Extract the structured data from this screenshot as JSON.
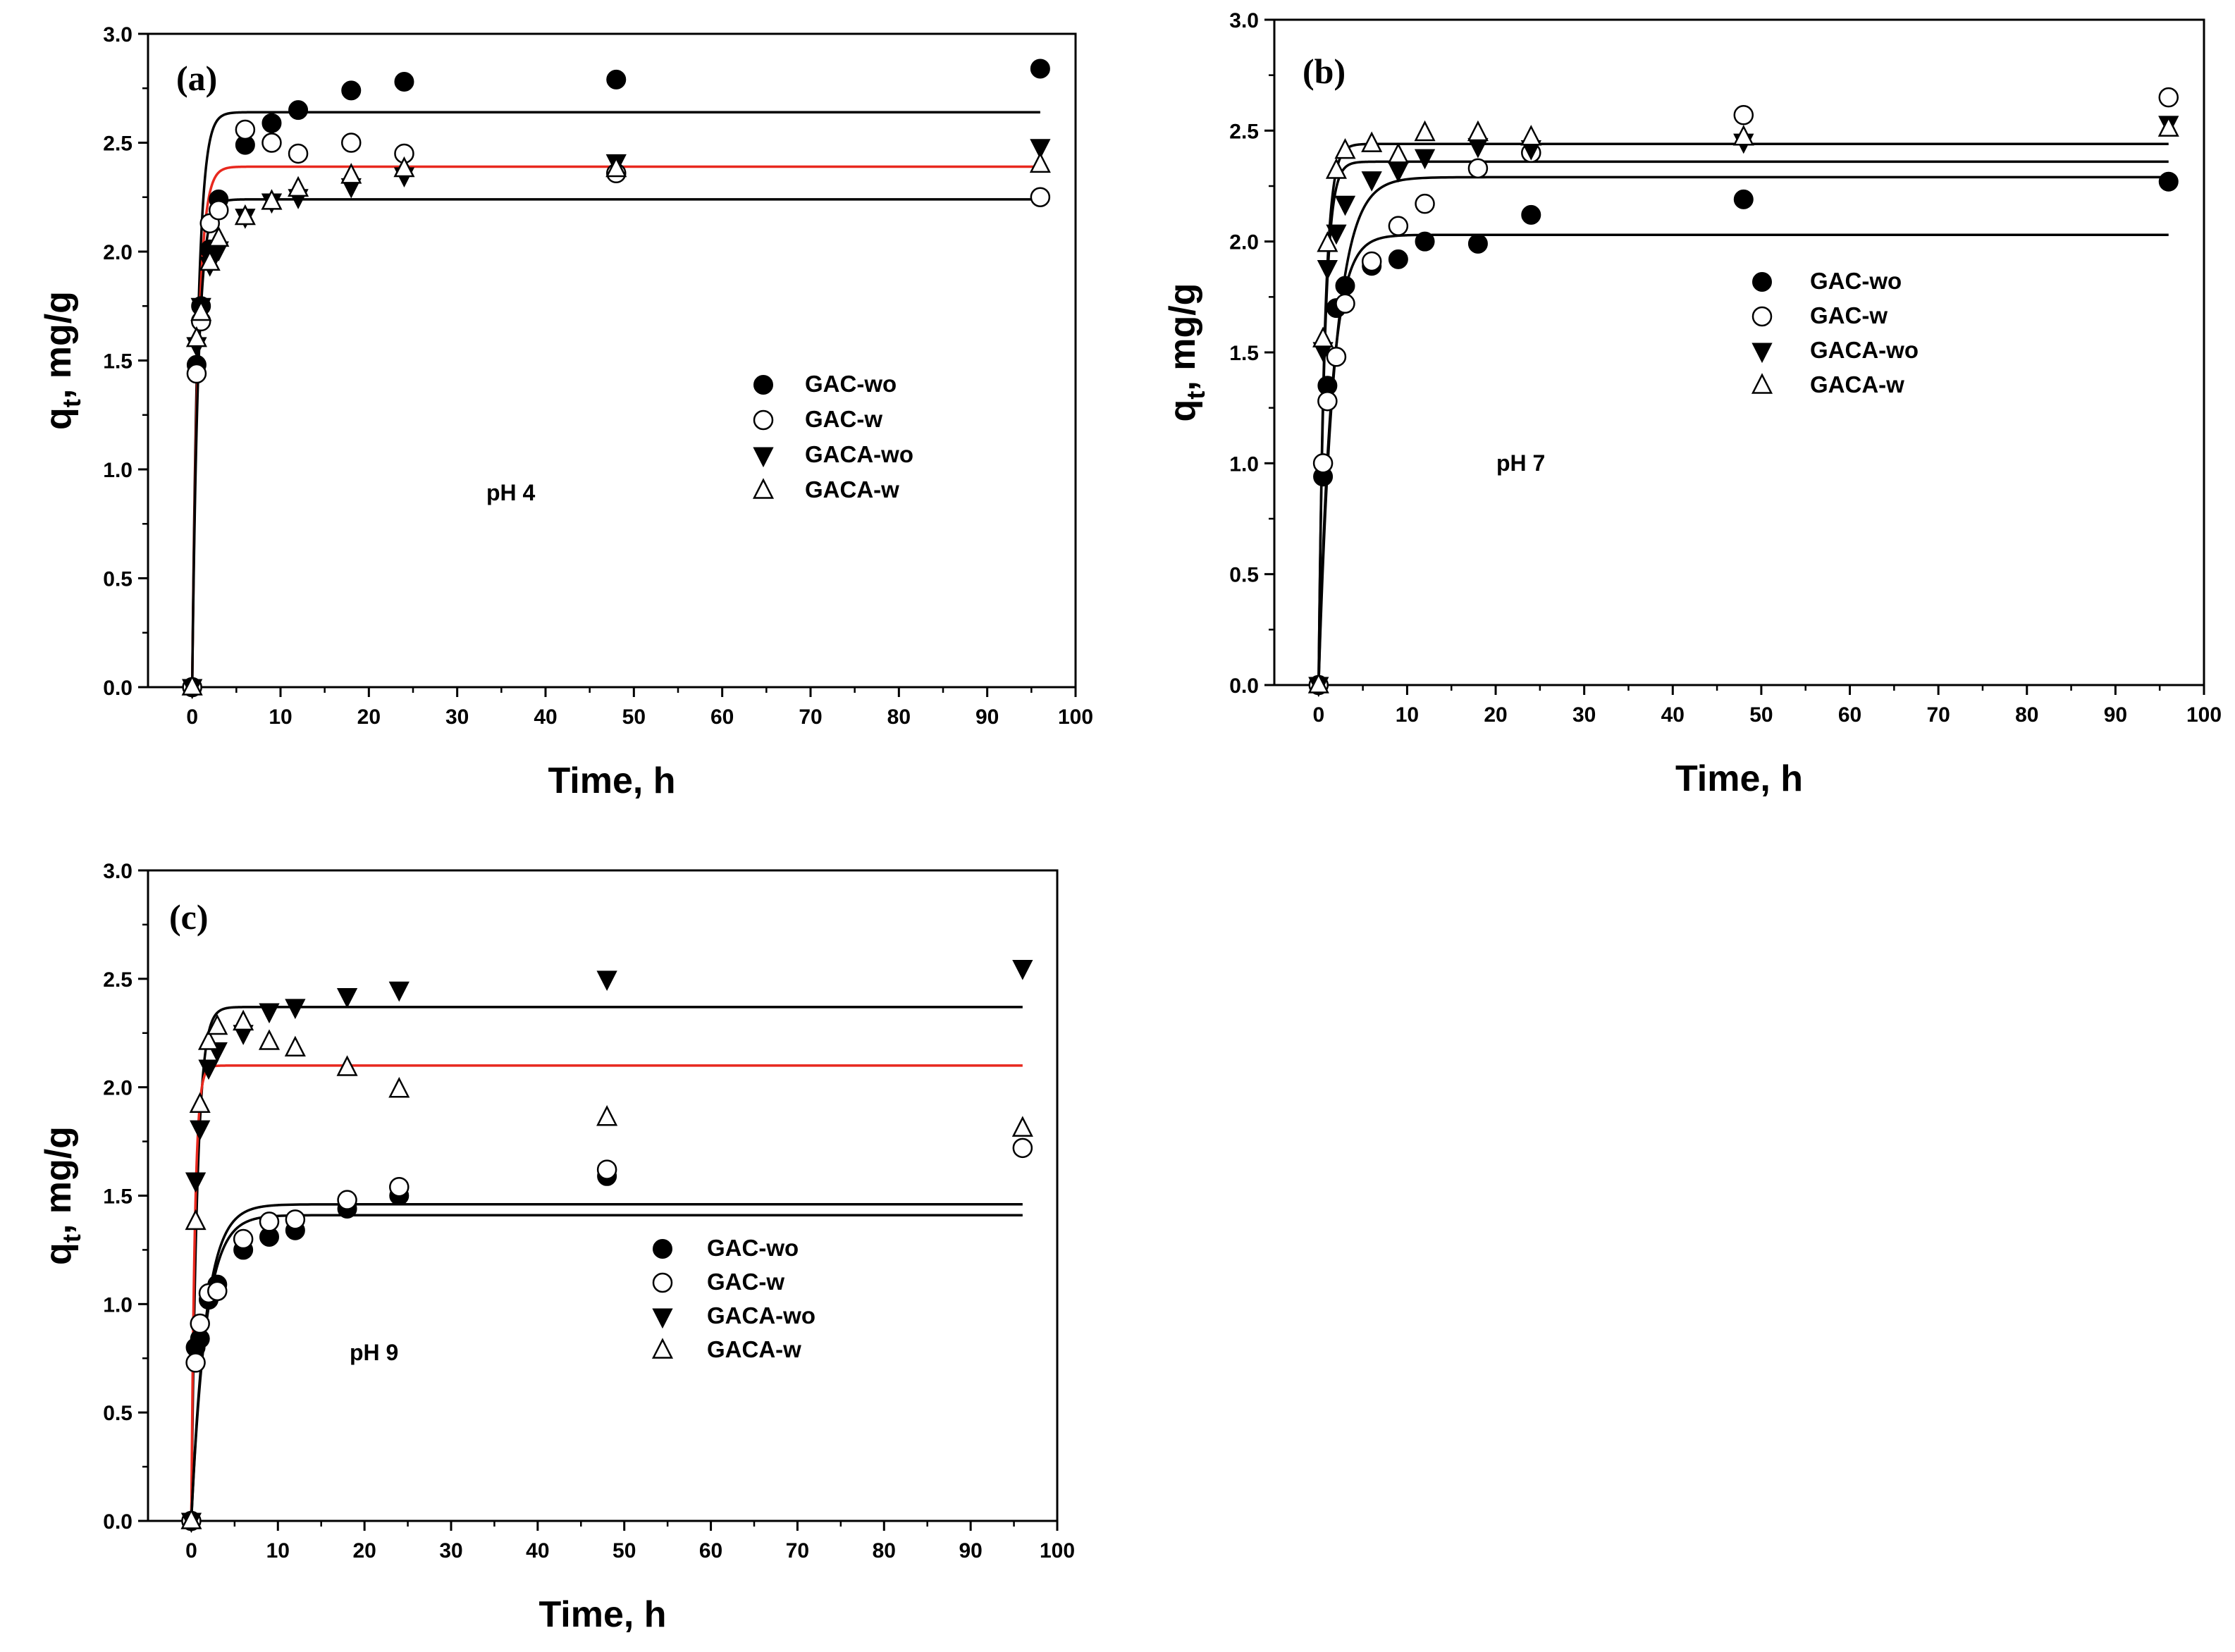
{
  "chart_data": [
    {
      "type": "scatter",
      "panel_label": "(a)",
      "annotation": "pH 4",
      "xlabel": "Time, h",
      "ylabel_main": "q",
      "ylabel_sub": "t",
      "ylabel_unit": ", mg/g",
      "xlim": [
        -5,
        100
      ],
      "ylim": [
        0,
        3
      ],
      "xticks": [
        "0",
        "10",
        "20",
        "30",
        "40",
        "50",
        "60",
        "70",
        "80",
        "90",
        "100"
      ],
      "yticks": [
        "0.0",
        "0.5",
        "1.0",
        "1.5",
        "2.0",
        "2.5",
        "3.0"
      ],
      "legend_position": "center-right",
      "series": [
        {
          "name": "GAC-wo",
          "marker": "filled-circle",
          "x": [
            0,
            0.5,
            1,
            2,
            3,
            6,
            9,
            12,
            18,
            24,
            48,
            96
          ],
          "y": [
            0,
            1.48,
            1.75,
            2.01,
            2.24,
            2.49,
            2.59,
            2.65,
            2.74,
            2.78,
            2.79,
            2.84
          ]
        },
        {
          "name": "GAC-w",
          "marker": "open-circle",
          "x": [
            0,
            0.5,
            1,
            2,
            3,
            6,
            9,
            12,
            18,
            24,
            48,
            96
          ],
          "y": [
            0,
            1.44,
            1.68,
            2.13,
            2.19,
            2.56,
            2.5,
            2.45,
            2.5,
            2.45,
            2.36,
            2.25
          ]
        },
        {
          "name": "GACA-wo",
          "marker": "filled-triangle-down",
          "x": [
            0,
            0.5,
            1,
            2,
            3,
            6,
            9,
            12,
            18,
            24,
            48,
            96
          ],
          "y": [
            0,
            1.57,
            1.75,
            1.94,
            2.01,
            2.16,
            2.23,
            2.25,
            2.3,
            2.35,
            2.41,
            2.48
          ]
        },
        {
          "name": "GACA-w",
          "marker": "open-triangle-up",
          "x": [
            0,
            0.5,
            1,
            2,
            3,
            6,
            9,
            12,
            18,
            24,
            48,
            96
          ],
          "y": [
            0,
            1.6,
            1.72,
            1.95,
            2.06,
            2.16,
            2.23,
            2.29,
            2.35,
            2.38,
            2.38,
            2.4
          ]
        }
      ],
      "fits": [
        {
          "qe": 2.64,
          "k": 1.5,
          "color": "#000000"
        },
        {
          "qe": 2.39,
          "k": 1.5,
          "color": "#e8281e"
        },
        {
          "qe": 2.24,
          "k": 1.5,
          "color": "#000000"
        }
      ]
    },
    {
      "type": "scatter",
      "panel_label": "(b)",
      "annotation": "pH 7",
      "xlabel": "Time, h",
      "ylabel_main": "q",
      "ylabel_sub": "t",
      "ylabel_unit": ", mg/g",
      "xlim": [
        -5,
        100
      ],
      "ylim": [
        0,
        3
      ],
      "xticks": [
        "0",
        "10",
        "20",
        "30",
        "40",
        "50",
        "60",
        "70",
        "80",
        "90",
        "100"
      ],
      "yticks": [
        "0.0",
        "0.5",
        "1.0",
        "1.5",
        "2.0",
        "2.5",
        "3.0"
      ],
      "legend_position": "center-right",
      "series": [
        {
          "name": "GAC-wo",
          "marker": "filled-circle",
          "x": [
            0,
            0.5,
            1,
            2,
            3,
            6,
            9,
            12,
            18,
            24,
            48,
            96
          ],
          "y": [
            0,
            0.94,
            1.35,
            1.7,
            1.8,
            1.89,
            1.92,
            2.0,
            1.99,
            2.12,
            2.19,
            2.27
          ]
        },
        {
          "name": "GAC-w",
          "marker": "open-circle",
          "x": [
            0,
            0.5,
            1,
            2,
            3,
            6,
            9,
            12,
            18,
            24,
            48,
            96
          ],
          "y": [
            0,
            1.0,
            1.28,
            1.48,
            1.72,
            1.91,
            2.07,
            2.17,
            2.33,
            2.4,
            2.57,
            2.65
          ]
        },
        {
          "name": "GACA-wo",
          "marker": "filled-triangle-down",
          "x": [
            0,
            0.5,
            1,
            2,
            3,
            6,
            9,
            12,
            18,
            24,
            48,
            96
          ],
          "y": [
            0,
            1.51,
            1.88,
            2.04,
            2.17,
            2.28,
            2.32,
            2.38,
            2.43,
            2.42,
            2.45,
            2.53
          ]
        },
        {
          "name": "GACA-w",
          "marker": "open-triangle-up",
          "x": [
            0,
            0.5,
            1,
            2,
            3,
            6,
            9,
            12,
            18,
            24,
            48,
            96
          ],
          "y": [
            0,
            1.56,
            1.99,
            2.32,
            2.41,
            2.44,
            2.39,
            2.49,
            2.49,
            2.47,
            2.47,
            2.51
          ]
        }
      ],
      "fits": [
        {
          "qe": 2.44,
          "k": 1.5,
          "color": "#000000"
        },
        {
          "qe": 2.36,
          "k": 1.5,
          "color": "#000000"
        },
        {
          "qe": 2.29,
          "k": 0.55,
          "color": "#000000"
        },
        {
          "qe": 2.03,
          "k": 0.7,
          "color": "#000000"
        }
      ]
    },
    {
      "type": "scatter",
      "panel_label": "(c)",
      "annotation": "pH 9",
      "xlabel": "Time, h",
      "ylabel_main": "q",
      "ylabel_sub": "t",
      "ylabel_unit": ", mg/g",
      "xlim": [
        -5,
        100
      ],
      "ylim": [
        0,
        3
      ],
      "xticks": [
        "0",
        "10",
        "20",
        "30",
        "40",
        "50",
        "60",
        "70",
        "80",
        "90",
        "100"
      ],
      "yticks": [
        "0.0",
        "0.5",
        "1.0",
        "1.5",
        "2.0",
        "2.5",
        "3.0"
      ],
      "legend_position": "bottom-right",
      "series": [
        {
          "name": "GAC-wo",
          "marker": "filled-circle",
          "x": [
            0,
            0.5,
            1,
            2,
            3,
            6,
            9,
            12,
            18,
            24,
            48,
            96
          ],
          "y": [
            0,
            0.8,
            0.84,
            1.02,
            1.09,
            1.25,
            1.31,
            1.34,
            1.44,
            1.5,
            1.59,
            1.72
          ]
        },
        {
          "name": "GAC-w",
          "marker": "open-circle",
          "x": [
            0,
            0.5,
            1,
            2,
            3,
            6,
            9,
            12,
            18,
            24,
            48,
            96
          ],
          "y": [
            0,
            0.73,
            0.91,
            1.05,
            1.06,
            1.3,
            1.38,
            1.39,
            1.48,
            1.54,
            1.62,
            1.72
          ]
        },
        {
          "name": "GACA-wo",
          "marker": "filled-triangle-down",
          "x": [
            0,
            0.5,
            1,
            2,
            3,
            6,
            9,
            12,
            18,
            24,
            48,
            96
          ],
          "y": [
            0,
            1.57,
            1.81,
            2.09,
            2.17,
            2.25,
            2.35,
            2.37,
            2.42,
            2.45,
            2.5,
            2.55
          ]
        },
        {
          "name": "GACA-w",
          "marker": "open-triangle-up",
          "x": [
            0,
            0.5,
            1,
            2,
            3,
            6,
            9,
            12,
            18,
            24,
            48,
            96
          ],
          "y": [
            0,
            1.38,
            1.92,
            2.21,
            2.28,
            2.3,
            2.21,
            2.18,
            2.09,
            1.99,
            1.86,
            1.81
          ]
        }
      ],
      "fits": [
        {
          "qe": 2.37,
          "k": 1.5,
          "color": "#000000"
        },
        {
          "qe": 2.1,
          "k": 2.5,
          "color": "#e8281e"
        },
        {
          "qe": 1.46,
          "k": 0.6,
          "color": "#000000"
        },
        {
          "qe": 1.41,
          "k": 0.6,
          "color": "#000000"
        }
      ]
    }
  ]
}
